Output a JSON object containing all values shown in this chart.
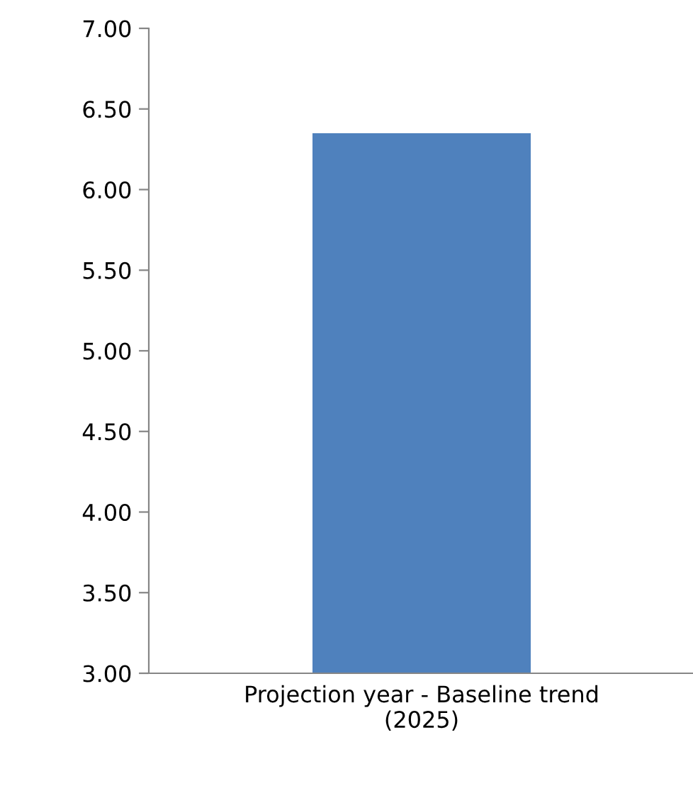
{
  "chart_data": {
    "type": "bar",
    "categories": [
      "Projection year - Baseline trend (2025)"
    ],
    "values": [
      6.35
    ],
    "color": "#4f81bd",
    "ylim": [
      3.0,
      7.0
    ],
    "yticks": [
      {
        "value": 3.0,
        "label": "3.00"
      },
      {
        "value": 3.5,
        "label": "3.50"
      },
      {
        "value": 4.0,
        "label": "4.00"
      },
      {
        "value": 4.5,
        "label": "4.50"
      },
      {
        "value": 5.0,
        "label": "5.00"
      },
      {
        "value": 5.5,
        "label": "5.50"
      },
      {
        "value": 6.0,
        "label": "6.00"
      },
      {
        "value": 6.5,
        "label": "6.50"
      },
      {
        "value": 7.0,
        "label": "7.00"
      }
    ],
    "grid": false
  }
}
